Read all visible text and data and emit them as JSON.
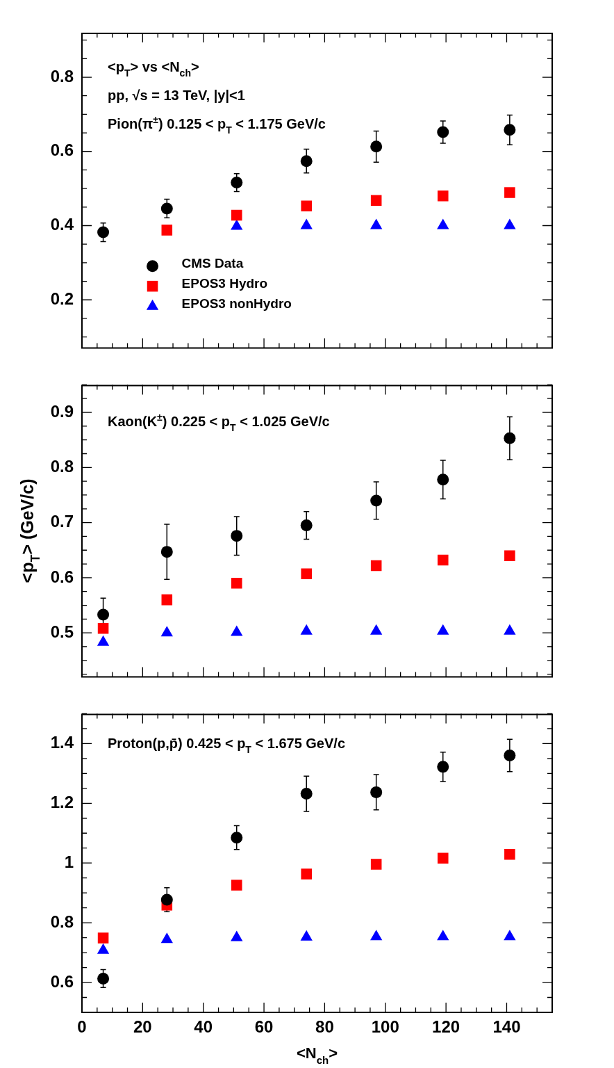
{
  "chart_data": [
    {
      "type": "scatter",
      "annotations": [
        "<p$_{T}$> vs <N$_{ch}$>",
        "pp, √s = 13 TeV, |y|<1",
        "Pion(π$^{±}$) 0.125 < p$_{T}$ < 1.175 GeV/c"
      ],
      "x": [
        7,
        28,
        51,
        74,
        97,
        119,
        141
      ],
      "xlim": [
        0,
        155
      ],
      "xticks": [
        0,
        20,
        40,
        60,
        80,
        100,
        120,
        140
      ],
      "ylim": [
        0.07,
        0.92
      ],
      "yticks": [
        0.2,
        0.4,
        0.6,
        0.8
      ],
      "tick_labels": "y",
      "legend": "bottom left",
      "series": [
        {
          "name": "CMS Data",
          "color": "#000000",
          "marker": "circle",
          "values": [
            0.382,
            0.446,
            0.516,
            0.574,
            0.613,
            0.652,
            0.658
          ],
          "errors": [
            0.025,
            0.025,
            0.024,
            0.032,
            0.042,
            0.03,
            0.04
          ]
        },
        {
          "name": "EPOS3 Hydro",
          "color": "#ff0000",
          "marker": "square",
          "values": [
            null,
            0.388,
            0.428,
            0.453,
            0.468,
            0.48,
            0.489
          ]
        },
        {
          "name": "EPOS3 nonHydro",
          "color": "#0000ff",
          "marker": "triangle",
          "values": [
            null,
            null,
            0.398,
            0.4,
            0.4,
            0.4,
            0.4
          ]
        }
      ]
    },
    {
      "type": "scatter",
      "annotations": [
        "Kaon(K$^{±}$) 0.225 < p$_{T}$ < 1.025 GeV/c"
      ],
      "ylabel": "<p$_{T}$> (GeV/c)",
      "x": [
        7,
        28,
        51,
        74,
        97,
        119,
        141
      ],
      "xlim": [
        0,
        155
      ],
      "xticks": [
        0,
        20,
        40,
        60,
        80,
        100,
        120,
        140
      ],
      "ylim": [
        0.42,
        0.95
      ],
      "yticks": [
        0.5,
        0.6,
        0.7,
        0.8,
        0.9
      ],
      "tick_labels": "y",
      "series": [
        {
          "color": "#000000",
          "marker": "circle",
          "values": [
            0.533,
            0.647,
            0.676,
            0.695,
            0.74,
            0.778,
            0.853
          ],
          "errors": [
            0.03,
            0.05,
            0.035,
            0.025,
            0.034,
            0.035,
            0.039
          ]
        },
        {
          "color": "#ff0000",
          "marker": "square",
          "values": [
            0.508,
            0.56,
            0.59,
            0.607,
            0.622,
            0.632,
            0.64
          ]
        },
        {
          "color": "#0000ff",
          "marker": "triangle",
          "values": [
            0.483,
            0.5,
            0.501,
            0.503,
            0.503,
            0.503,
            0.503
          ]
        }
      ]
    },
    {
      "type": "scatter",
      "annotations": [
        "Proton(p,p̄) 0.425 < p$_{T}$ < 1.675 GeV/c"
      ],
      "xlabel": "<N$_{ch}$>",
      "x": [
        7,
        28,
        51,
        74,
        97,
        119,
        141
      ],
      "xlim": [
        0,
        155
      ],
      "xticks": [
        0,
        20,
        40,
        60,
        80,
        100,
        120,
        140
      ],
      "ylim": [
        0.5,
        1.5
      ],
      "yticks": [
        0.6,
        0.8,
        1,
        1.2,
        1.4
      ],
      "series": [
        {
          "color": "#000000",
          "marker": "circle",
          "values": [
            0.613,
            0.877,
            1.085,
            1.232,
            1.237,
            1.322,
            1.36
          ],
          "errors": [
            0.03,
            0.04,
            0.04,
            0.059,
            0.059,
            0.049,
            0.054
          ]
        },
        {
          "color": "#ff0000",
          "marker": "square",
          "values": [
            0.749,
            0.859,
            0.926,
            0.963,
            0.996,
            1.016,
            1.029
          ]
        },
        {
          "color": "#0000ff",
          "marker": "triangle",
          "values": [
            0.708,
            0.744,
            0.75,
            0.752,
            0.753,
            0.753,
            0.753
          ]
        }
      ]
    }
  ]
}
